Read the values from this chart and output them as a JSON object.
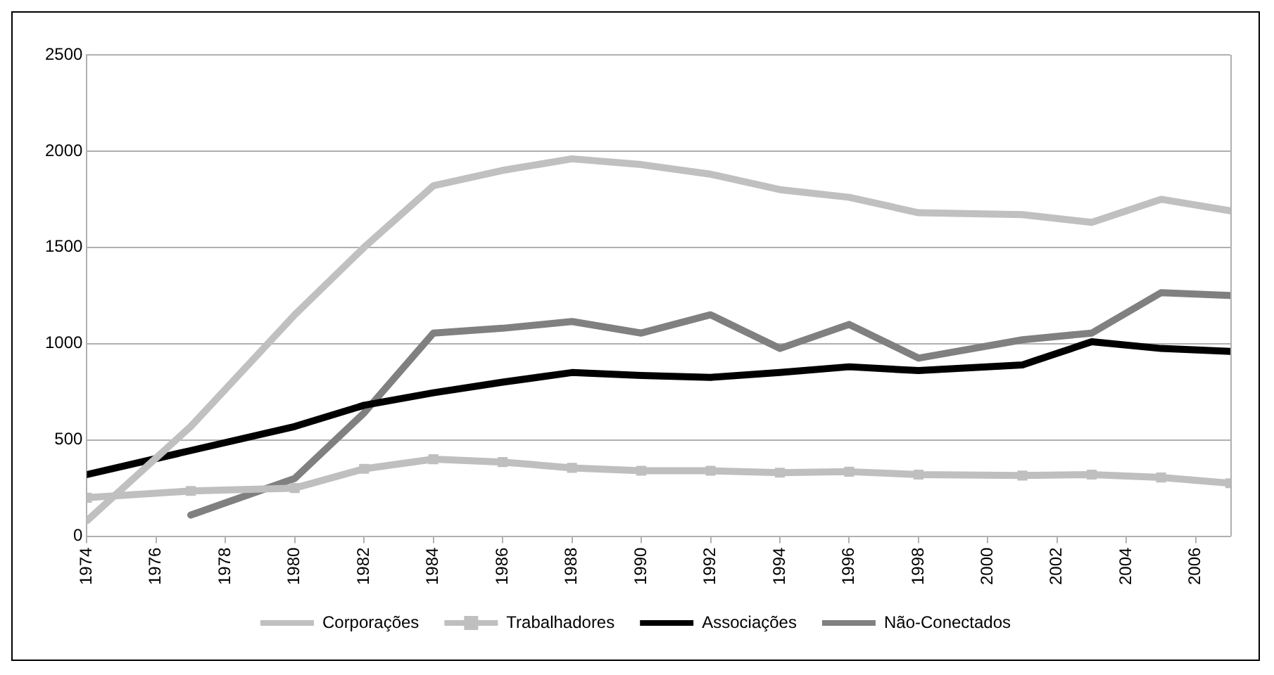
{
  "chart_data": {
    "type": "line",
    "x": [
      1974,
      1977,
      1980,
      1982,
      1984,
      1986,
      1988,
      1990,
      1992,
      1994,
      1996,
      1998,
      2001,
      2003,
      2005,
      2007
    ],
    "series": [
      {
        "name": "Corporações",
        "color": "#c0c0c0",
        "marker": "none",
        "values": [
          80,
          570,
          1150,
          1500,
          1820,
          1900,
          1960,
          1930,
          1880,
          1800,
          1760,
          1680,
          1670,
          1630,
          1750,
          1690
        ]
      },
      {
        "name": "Trabalhadores",
        "color": "#bfbfbf",
        "marker": "square",
        "values": [
          200,
          235,
          250,
          350,
          400,
          385,
          355,
          340,
          340,
          330,
          335,
          320,
          315,
          320,
          305,
          275
        ]
      },
      {
        "name": "Associações",
        "color": "#000000",
        "marker": "none",
        "values": [
          320,
          445,
          570,
          680,
          745,
          800,
          850,
          835,
          825,
          850,
          880,
          860,
          890,
          1010,
          975,
          960
        ]
      },
      {
        "name": "Não-Conectados",
        "color": "#808080",
        "marker": "none",
        "values": [
          null,
          110,
          300,
          640,
          1055,
          1080,
          1115,
          1055,
          1150,
          975,
          1100,
          925,
          1020,
          1055,
          1265,
          1250
        ]
      }
    ],
    "xlim": [
      1974,
      2007
    ],
    "xticks": [
      1974,
      1976,
      1978,
      1980,
      1982,
      1984,
      1986,
      1988,
      1990,
      1992,
      1994,
      1996,
      1998,
      2000,
      2002,
      2004,
      2006
    ],
    "ylim": [
      0,
      2500
    ],
    "yticks": [
      0,
      500,
      1000,
      1500,
      2000,
      2500
    ],
    "grid": "y",
    "legend": "bottom",
    "line_style": "solid"
  }
}
